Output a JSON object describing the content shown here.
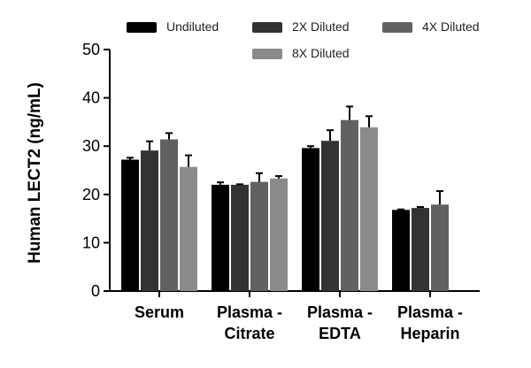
{
  "chart_data": {
    "type": "bar",
    "title": "",
    "xlabel": "",
    "ylabel": "Human LECT2 (ng/mL)",
    "ylim": [
      0,
      50
    ],
    "yticks": [
      0,
      10,
      20,
      30,
      40,
      50
    ],
    "categories": [
      [
        "Serum"
      ],
      [
        "Plasma -",
        "Citrate"
      ],
      [
        "Plasma -",
        "EDTA"
      ],
      [
        "Plasma -",
        "Heparin"
      ]
    ],
    "series": [
      {
        "name": "Undiluted",
        "color": "#000000",
        "values": [
          27.2,
          22.0,
          29.6,
          16.8
        ],
        "errors": [
          0.4,
          0.5,
          0.4,
          0.1
        ]
      },
      {
        "name": "2X Diluted",
        "color": "#333333",
        "values": [
          29.1,
          22.0,
          31.1,
          17.2
        ],
        "errors": [
          1.9,
          0.1,
          2.2,
          0.2
        ]
      },
      {
        "name": "4X Diluted",
        "color": "#616161",
        "values": [
          31.4,
          22.6,
          35.4,
          17.9
        ],
        "errors": [
          1.3,
          1.8,
          2.8,
          2.8
        ]
      },
      {
        "name": "8X Diluted",
        "color": "#8a8a8a",
        "values": [
          25.7,
          23.3,
          33.9,
          null
        ],
        "errors": [
          2.4,
          0.5,
          2.3,
          null
        ]
      }
    ],
    "legend": "top"
  }
}
